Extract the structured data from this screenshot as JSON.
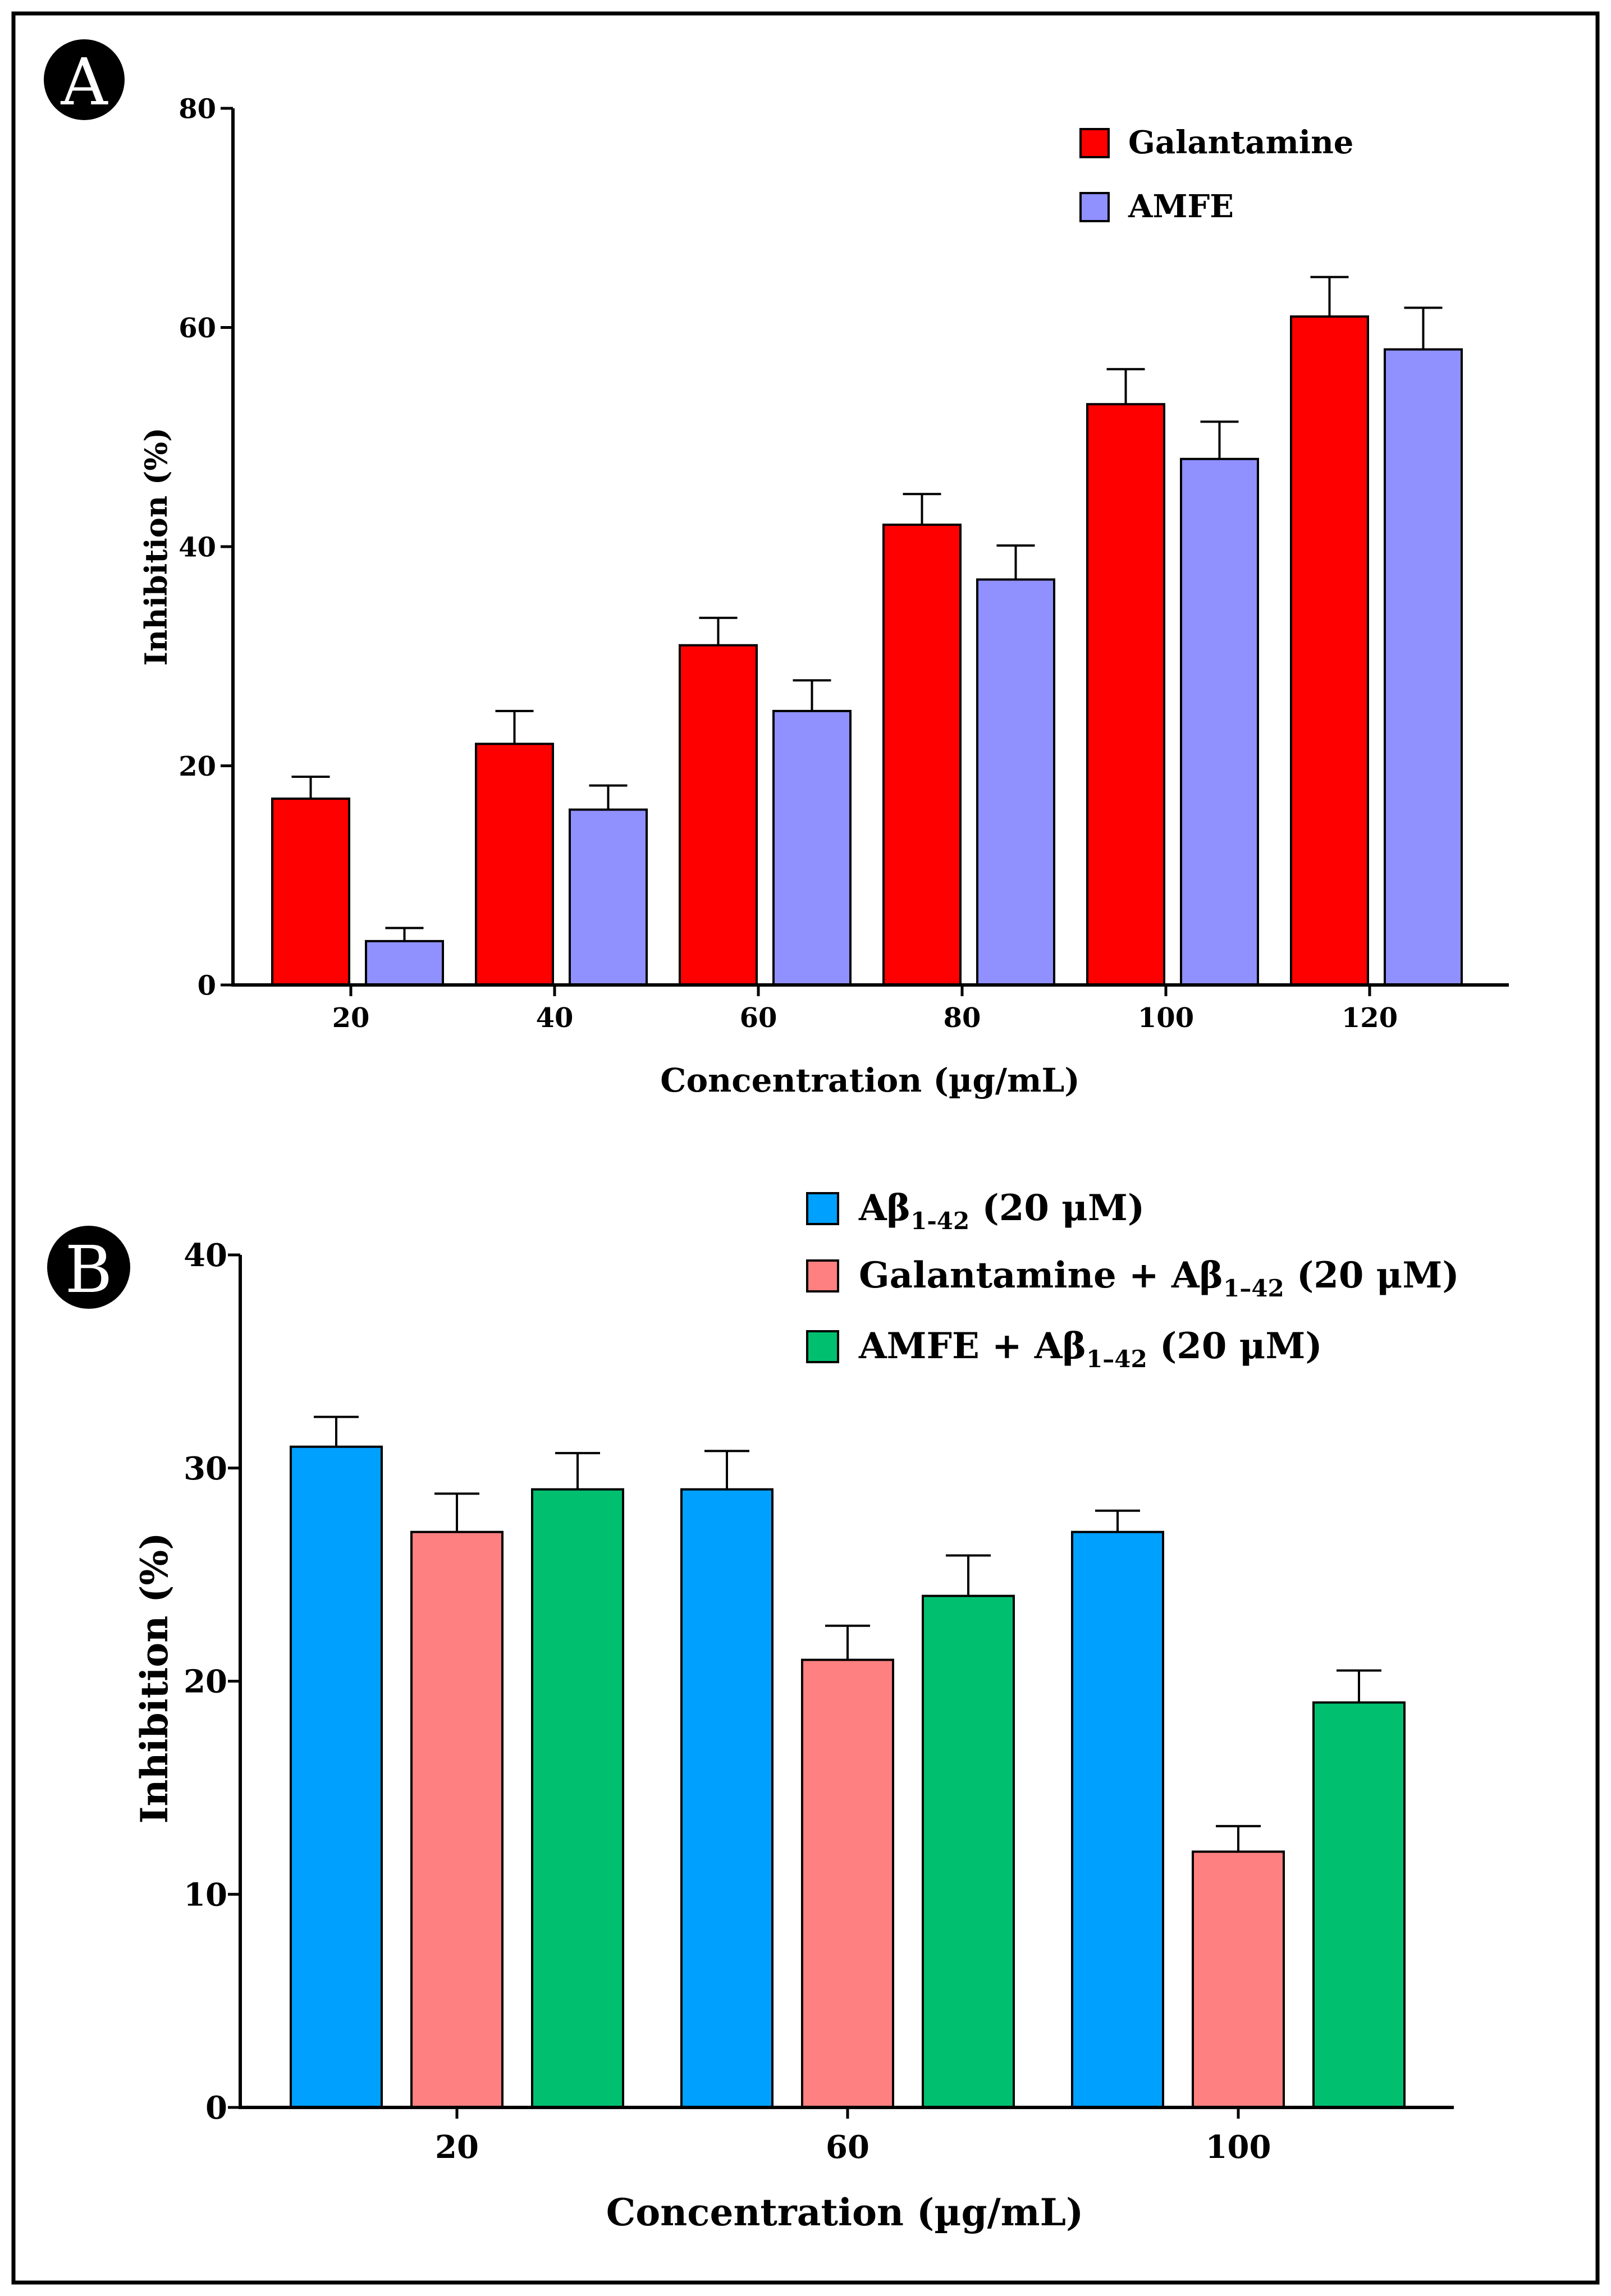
{
  "colors": {
    "galantamine": "#ff0000",
    "amfe": "#9090ff",
    "abeta": "#00a0ff",
    "galantamine_abeta": "#ff8080",
    "amfe_abeta": "#00c070",
    "border": "#000000"
  },
  "panel_a": {
    "badge": "A",
    "legend": [
      "Galantamine",
      "AMFE"
    ]
  },
  "panel_b": {
    "badge": "B",
    "legend": [
      {
        "main": "Aβ",
        "sub": "1-42",
        "tail": " (20 μM)"
      },
      {
        "main": "Galantamine + Aβ",
        "sub": "1–42",
        "tail": " (20 μM)"
      },
      {
        "main": "AMFE + Aβ",
        "sub": "1–42",
        "tail": " (20 μM)"
      }
    ]
  },
  "chart_data": [
    {
      "type": "bar",
      "panel": "A",
      "title": "",
      "xlabel": "Concentration (µg/mL)",
      "ylabel": "Inhibition (%)",
      "ylim": [
        0,
        80
      ],
      "yticks": [
        "0",
        "20",
        "40",
        "60",
        "80"
      ],
      "categories": [
        "20",
        "40",
        "60",
        "80",
        "100",
        "120"
      ],
      "series": [
        {
          "name": "Galantamine",
          "values": [
            17,
            22,
            31,
            42,
            53,
            61
          ],
          "errors": [
            2,
            3,
            2.5,
            2.8,
            3.2,
            3.6
          ]
        },
        {
          "name": "AMFE",
          "values": [
            4,
            16,
            25,
            37,
            48,
            58
          ],
          "errors": [
            1.2,
            2.2,
            2.8,
            3.1,
            3.4,
            3.8
          ]
        }
      ],
      "legend_position": "top-right",
      "grid": false
    },
    {
      "type": "bar",
      "panel": "B",
      "title": "",
      "xlabel": "Concentration (µg/mL)",
      "ylabel": "Inhibition (%)",
      "ylim": [
        0,
        40
      ],
      "yticks": [
        "0",
        "10",
        "20",
        "30",
        "40"
      ],
      "categories": [
        "20",
        "60",
        "100"
      ],
      "series": [
        {
          "name": "Aβ1-42 (20 μM)",
          "values": [
            31,
            29,
            27
          ],
          "errors": [
            1.4,
            1.8,
            1.0
          ]
        },
        {
          "name": "Galantamine + Aβ1–42 (20 μM)",
          "values": [
            27,
            21,
            12
          ],
          "errors": [
            1.8,
            1.6,
            1.2
          ]
        },
        {
          "name": "AMFE + Aβ1–42 (20 μM)",
          "values": [
            29,
            24,
            19
          ],
          "errors": [
            1.7,
            1.9,
            1.5
          ]
        }
      ],
      "legend_position": "top-right",
      "grid": false
    }
  ]
}
